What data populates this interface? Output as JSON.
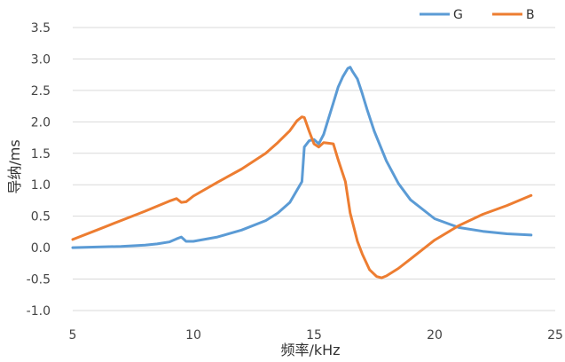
{
  "chart_data": {
    "type": "line",
    "xlabel": "频率/kHz",
    "ylabel": "导纳/ms",
    "xlim": [
      5,
      25
    ],
    "ylim": [
      -1.0,
      3.5
    ],
    "xticks": [
      "5",
      "10",
      "15",
      "20",
      "25"
    ],
    "yticks": [
      "-1.0",
      "-0.5",
      "0.0",
      "0.5",
      "1.0",
      "1.5",
      "2.0",
      "2.5",
      "3.0",
      "3.5"
    ],
    "grid": "horizontal",
    "legend": "top-right",
    "series": [
      {
        "name": "G",
        "color": "#5B9BD5",
        "x": [
          5,
          6,
          7,
          8,
          8.5,
          9,
          9.3,
          9.5,
          9.7,
          10,
          11,
          12,
          13,
          13.5,
          14,
          14.2,
          14.5,
          14.6,
          14.8,
          15,
          15.2,
          15.4,
          15.6,
          15.8,
          16,
          16.2,
          16.4,
          16.5,
          16.6,
          16.8,
          17,
          17.2,
          17.5,
          18,
          18.5,
          19,
          20,
          21,
          22,
          23,
          24
        ],
        "y": [
          0.0,
          0.01,
          0.02,
          0.04,
          0.06,
          0.09,
          0.14,
          0.17,
          0.1,
          0.1,
          0.17,
          0.28,
          0.43,
          0.55,
          0.72,
          0.85,
          1.05,
          1.6,
          1.7,
          1.72,
          1.65,
          1.8,
          2.05,
          2.3,
          2.55,
          2.72,
          2.85,
          2.87,
          2.8,
          2.68,
          2.45,
          2.2,
          1.85,
          1.38,
          1.02,
          0.76,
          0.46,
          0.32,
          0.26,
          0.22,
          0.2
        ]
      },
      {
        "name": "B",
        "color": "#ED7D31",
        "x": [
          5,
          6,
          7,
          8,
          9,
          9.3,
          9.5,
          9.7,
          10,
          11,
          12,
          13,
          13.5,
          14,
          14.3,
          14.5,
          14.6,
          14.8,
          15,
          15.2,
          15.4,
          15.6,
          15.8,
          16,
          16.3,
          16.5,
          16.8,
          17,
          17.3,
          17.6,
          17.8,
          18,
          18.5,
          19,
          20,
          21,
          22,
          23,
          24
        ],
        "y": [
          0.13,
          0.28,
          0.43,
          0.58,
          0.74,
          0.78,
          0.72,
          0.73,
          0.82,
          1.04,
          1.25,
          1.5,
          1.67,
          1.86,
          2.02,
          2.08,
          2.07,
          1.85,
          1.65,
          1.6,
          1.67,
          1.66,
          1.65,
          1.4,
          1.05,
          0.55,
          0.1,
          -0.1,
          -0.35,
          -0.46,
          -0.48,
          -0.45,
          -0.33,
          -0.18,
          0.12,
          0.35,
          0.53,
          0.67,
          0.83
        ]
      }
    ]
  }
}
